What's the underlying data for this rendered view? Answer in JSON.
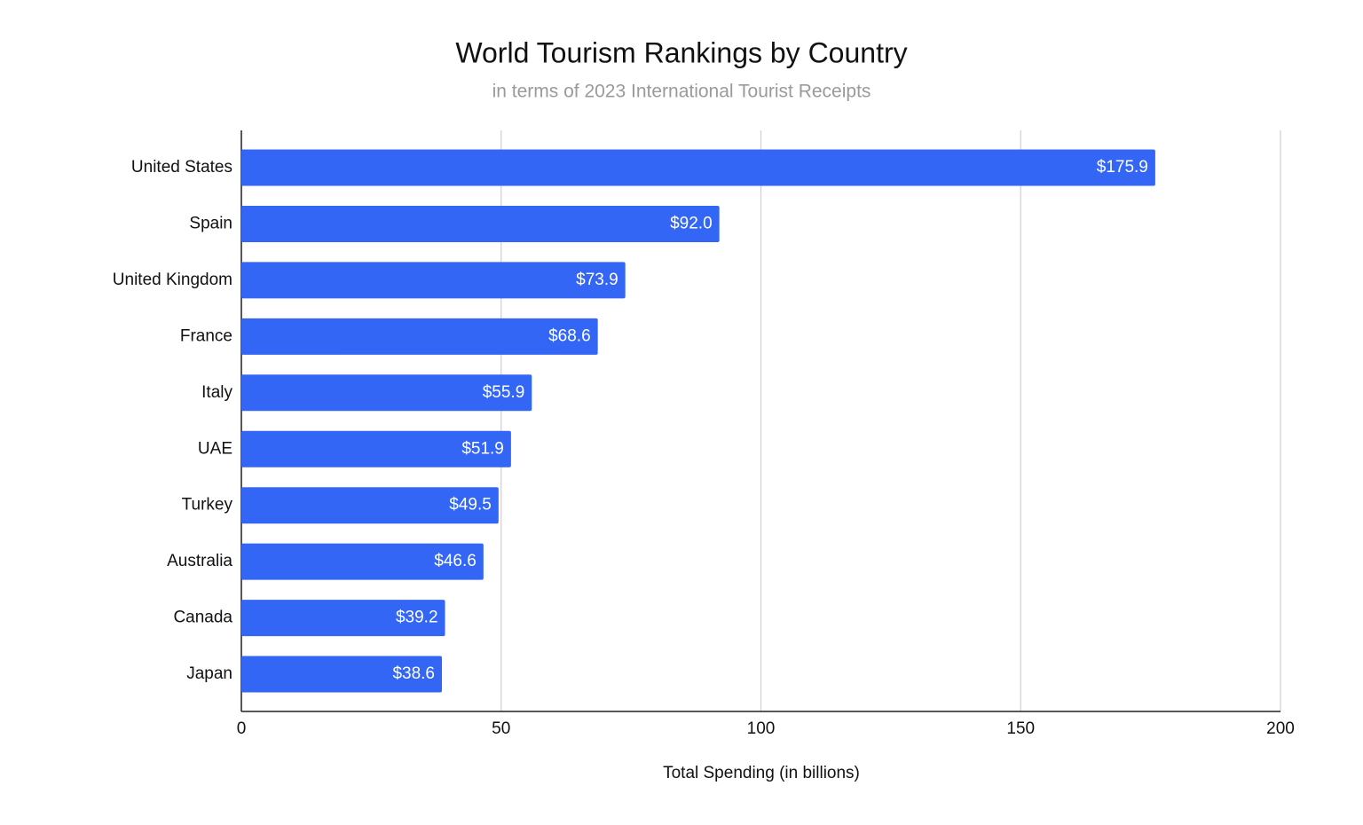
{
  "chart_data": {
    "type": "bar",
    "orientation": "horizontal",
    "title": "World Tourism Rankings by Country",
    "subtitle": "in terms of 2023 International Tourist Receipts",
    "x_label": "Total Spending (in billions)",
    "categories": [
      "United States",
      "Spain",
      "United Kingdom",
      "France",
      "Italy",
      "UAE",
      "Turkey",
      "Australia",
      "Canada",
      "Japan"
    ],
    "values": [
      175.9,
      92.0,
      73.9,
      68.6,
      55.9,
      51.9,
      49.5,
      46.6,
      39.2,
      38.6
    ],
    "value_labels": [
      "$175.9",
      "$92.0",
      "$73.9",
      "$68.6",
      "$55.9",
      "$51.9",
      "$49.5",
      "$46.6",
      "$39.2",
      "$38.6"
    ],
    "color": "#3466f6",
    "xlim": [
      0,
      200
    ],
    "xticks": [
      0,
      50,
      100,
      150,
      200
    ],
    "grid": true
  }
}
